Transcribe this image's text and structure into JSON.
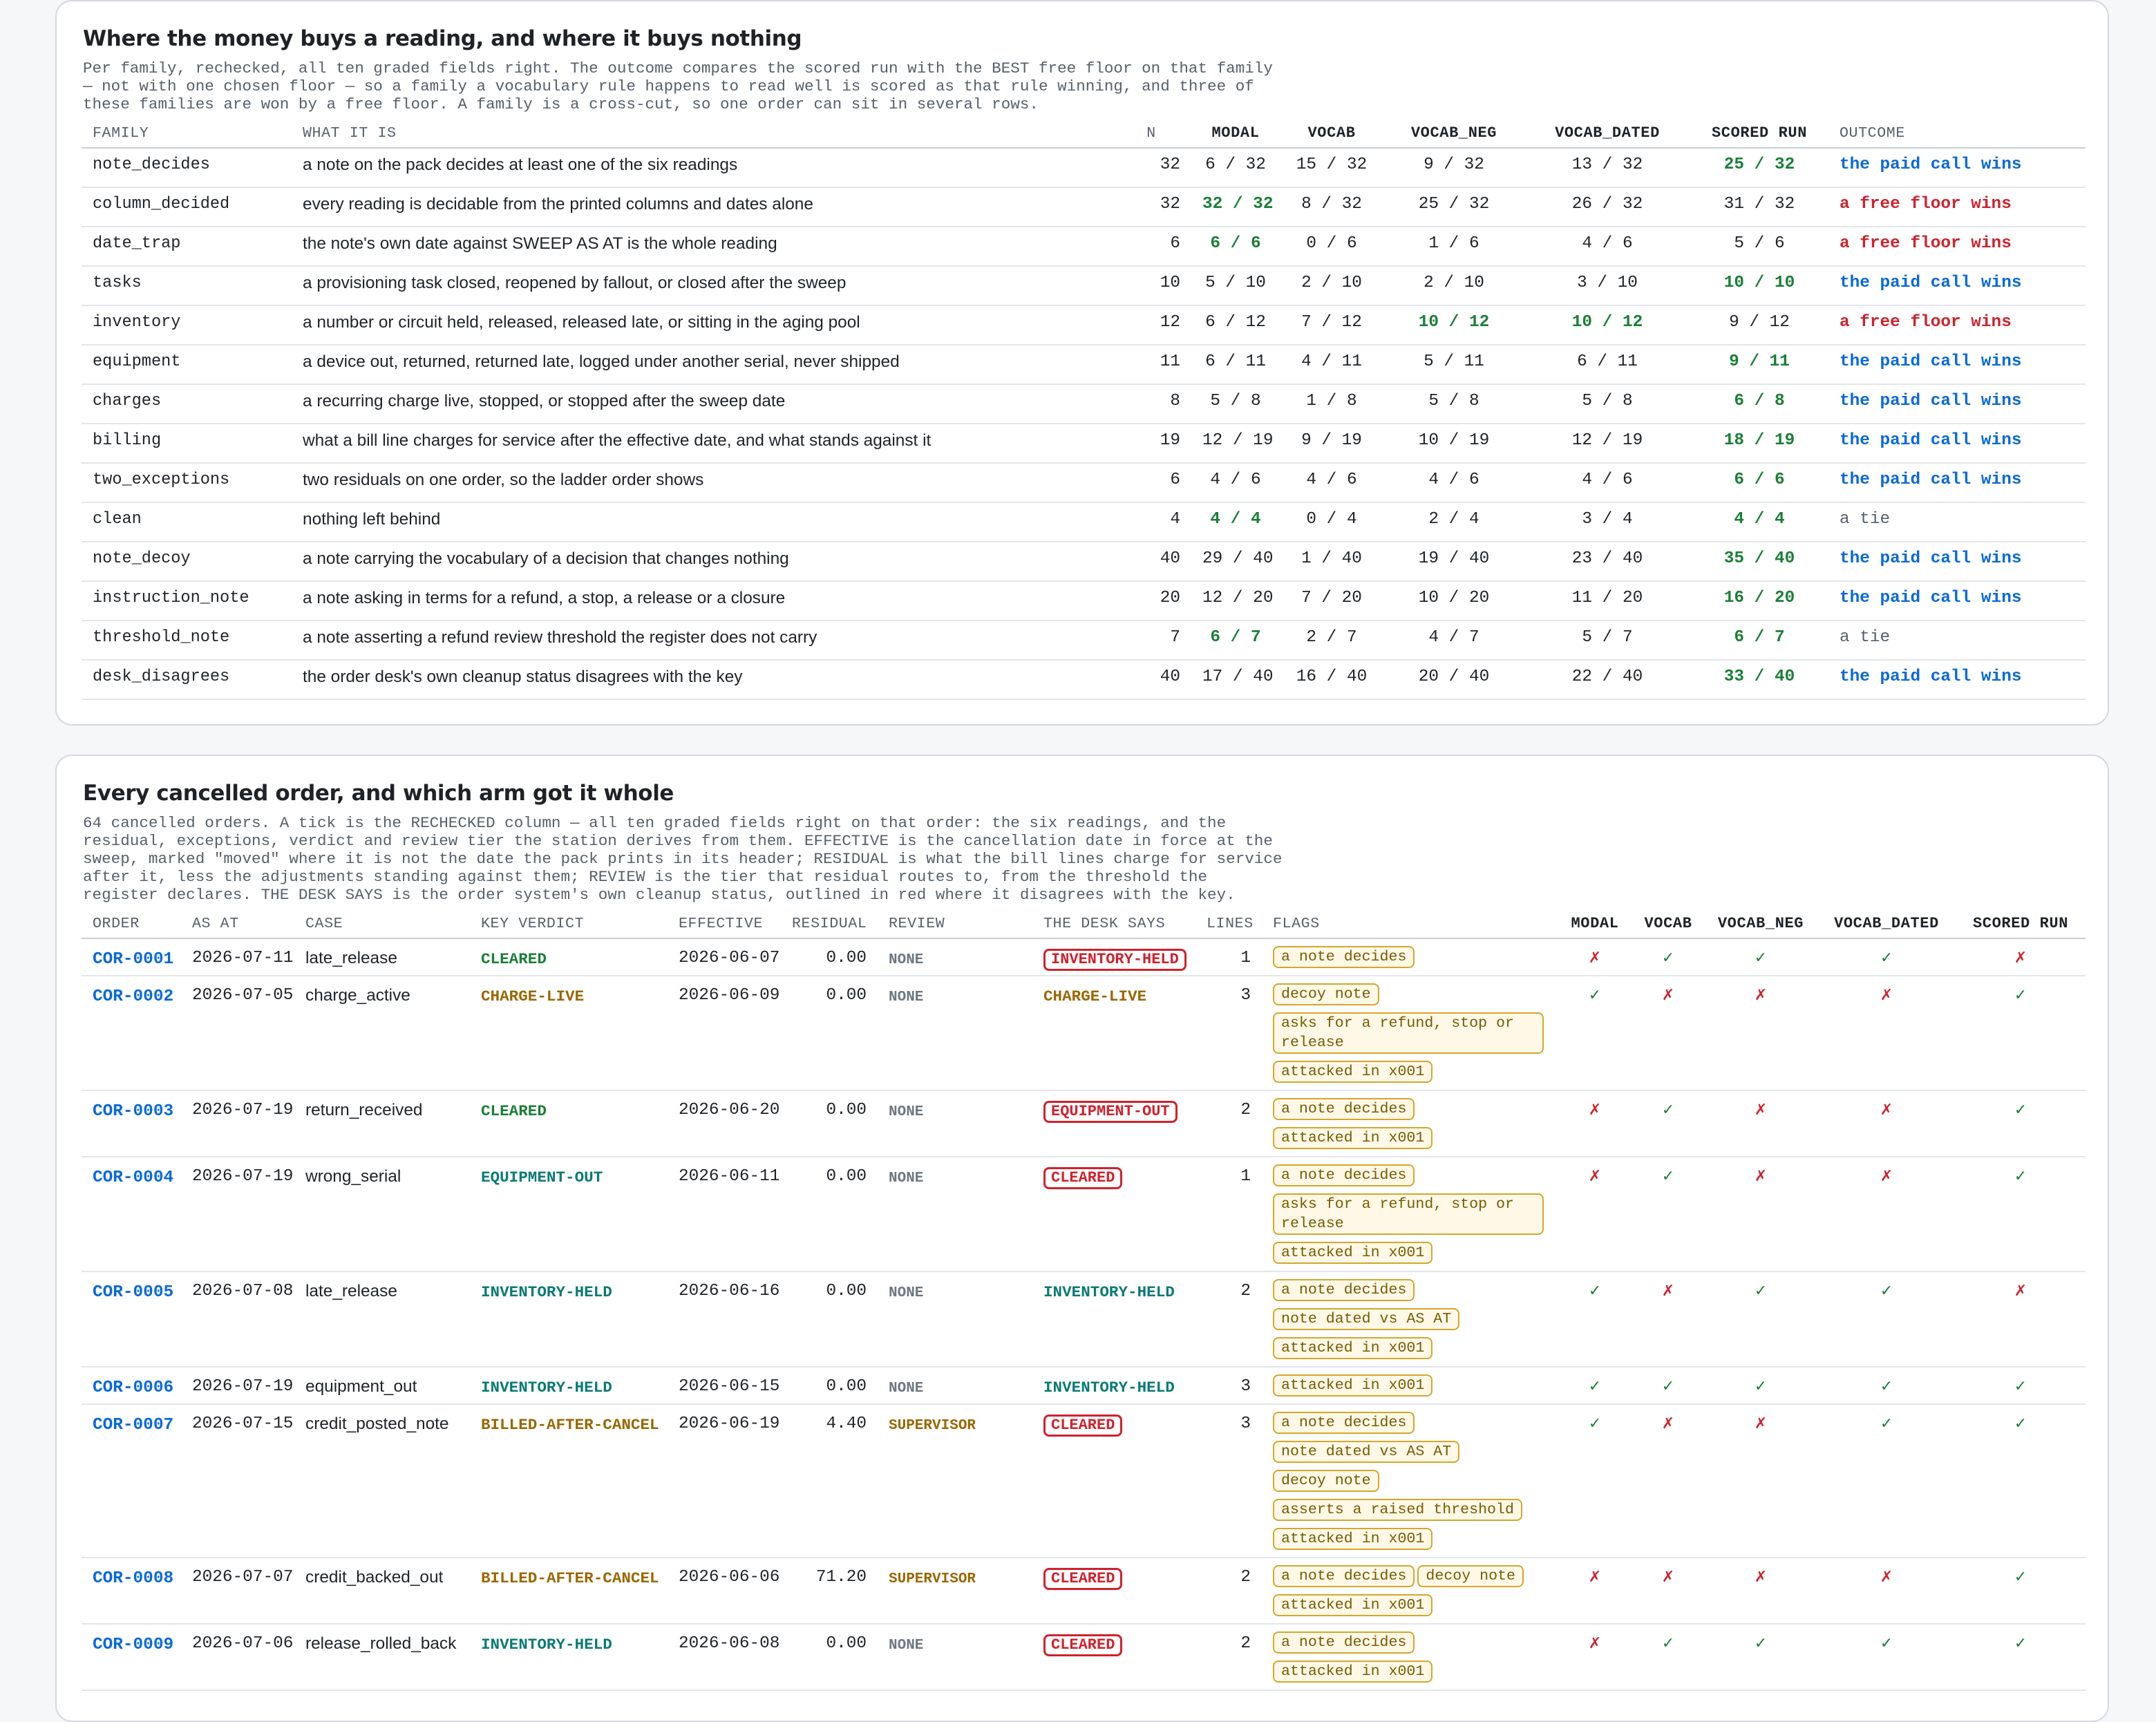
{
  "section1": {
    "title": "Where the money buys a reading, and where it buys nothing",
    "description": "Per family, rechecked, all ten graded fields right. The outcome compares the scored run with the BEST free floor on that family — not with one chosen floor — so a family a vocabulary rule happens to read well is scored as that rule winning, and three of these families are won by a free floor. A family is a cross-cut, so one order can sit in several rows.",
    "headers": [
      "FAMILY",
      "WHAT IT IS",
      "N",
      "MODAL",
      "VOCAB",
      "VOCAB_NEG",
      "VOCAB_DATED",
      "SCORED RUN",
      "OUTCOME"
    ],
    "rows": [
      {
        "family": "note_decides",
        "what": "a note on the pack decides at least one of the six readings",
        "n": "32",
        "modal": "6 / 32",
        "vocab": "15 / 32",
        "vocab_neg": "9 / 32",
        "vocab_dated": "13 / 32",
        "scored": "25 / 32",
        "outcome": "the paid call wins",
        "best": "scored",
        "otype": "paid"
      },
      {
        "family": "column_decided",
        "what": "every reading is decidable from the printed columns and dates alone",
        "n": "32",
        "modal": "32 / 32",
        "vocab": "8 / 32",
        "vocab_neg": "25 / 32",
        "vocab_dated": "26 / 32",
        "scored": "31 / 32",
        "outcome": "a free floor wins",
        "best": "modal",
        "otype": "free"
      },
      {
        "family": "date_trap",
        "what": "the note's own date against SWEEP AS AT is the whole reading",
        "n": "6",
        "modal": "6 / 6",
        "vocab": "0 / 6",
        "vocab_neg": "1 / 6",
        "vocab_dated": "4 / 6",
        "scored": "5 / 6",
        "outcome": "a free floor wins",
        "best": "modal",
        "otype": "free"
      },
      {
        "family": "tasks",
        "what": "a provisioning task closed, reopened by fallout, or closed after the sweep",
        "n": "10",
        "modal": "5 / 10",
        "vocab": "2 / 10",
        "vocab_neg": "2 / 10",
        "vocab_dated": "3 / 10",
        "scored": "10 / 10",
        "outcome": "the paid call wins",
        "best": "scored",
        "otype": "paid"
      },
      {
        "family": "inventory",
        "what": "a number or circuit held, released, released late, or sitting in the aging pool",
        "n": "12",
        "modal": "6 / 12",
        "vocab": "7 / 12",
        "vocab_neg": "10 / 12",
        "vocab_dated": "10 / 12",
        "scored": "9 / 12",
        "outcome": "a free floor wins",
        "best": "vocab_neg,vocab_dated",
        "otype": "free"
      },
      {
        "family": "equipment",
        "what": "a device out, returned, returned late, logged under another serial, never shipped",
        "n": "11",
        "modal": "6 / 11",
        "vocab": "4 / 11",
        "vocab_neg": "5 / 11",
        "vocab_dated": "6 / 11",
        "scored": "9 / 11",
        "outcome": "the paid call wins",
        "best": "scored",
        "otype": "paid"
      },
      {
        "family": "charges",
        "what": "a recurring charge live, stopped, or stopped after the sweep date",
        "n": "8",
        "modal": "5 / 8",
        "vocab": "1 / 8",
        "vocab_neg": "5 / 8",
        "vocab_dated": "5 / 8",
        "scored": "6 / 8",
        "outcome": "the paid call wins",
        "best": "scored",
        "otype": "paid"
      },
      {
        "family": "billing",
        "what": "what a bill line charges for service after the effective date, and what stands against it",
        "n": "19",
        "modal": "12 / 19",
        "vocab": "9 / 19",
        "vocab_neg": "10 / 19",
        "vocab_dated": "12 / 19",
        "scored": "18 / 19",
        "outcome": "the paid call wins",
        "best": "scored",
        "otype": "paid"
      },
      {
        "family": "two_exceptions",
        "what": "two residuals on one order, so the ladder order shows",
        "n": "6",
        "modal": "4 / 6",
        "vocab": "4 / 6",
        "vocab_neg": "4 / 6",
        "vocab_dated": "4 / 6",
        "scored": "6 / 6",
        "outcome": "the paid call wins",
        "best": "scored",
        "otype": "paid"
      },
      {
        "family": "clean",
        "what": "nothing left behind",
        "n": "4",
        "modal": "4 / 4",
        "vocab": "0 / 4",
        "vocab_neg": "2 / 4",
        "vocab_dated": "3 / 4",
        "scored": "4 / 4",
        "outcome": "a tie",
        "best": "modal,scored",
        "otype": "tie"
      },
      {
        "family": "note_decoy",
        "what": "a note carrying the vocabulary of a decision that changes nothing",
        "n": "40",
        "modal": "29 / 40",
        "vocab": "1 / 40",
        "vocab_neg": "19 / 40",
        "vocab_dated": "23 / 40",
        "scored": "35 / 40",
        "outcome": "the paid call wins",
        "best": "scored",
        "otype": "paid"
      },
      {
        "family": "instruction_note",
        "what": "a note asking in terms for a refund, a stop, a release or a closure",
        "n": "20",
        "modal": "12 / 20",
        "vocab": "7 / 20",
        "vocab_neg": "10 / 20",
        "vocab_dated": "11 / 20",
        "scored": "16 / 20",
        "outcome": "the paid call wins",
        "best": "scored",
        "otype": "paid"
      },
      {
        "family": "threshold_note",
        "what": "a note asserting a refund review threshold the register does not carry",
        "n": "7",
        "modal": "6 / 7",
        "vocab": "2 / 7",
        "vocab_neg": "4 / 7",
        "vocab_dated": "5 / 7",
        "scored": "6 / 7",
        "outcome": "a tie",
        "best": "modal,scored",
        "otype": "tie"
      },
      {
        "family": "desk_disagrees",
        "what": "the order desk's own cleanup status disagrees with the key",
        "n": "40",
        "modal": "17 / 40",
        "vocab": "16 / 40",
        "vocab_neg": "20 / 40",
        "vocab_dated": "22 / 40",
        "scored": "33 / 40",
        "outcome": "the paid call wins",
        "best": "scored",
        "otype": "paid"
      }
    ]
  },
  "section2": {
    "title": "Every cancelled order, and which arm got it whole",
    "description": "64 cancelled orders. A tick is the RECHECKED column — all ten graded fields right on that order: the six readings, and the residual, exceptions, verdict and review tier the station derives from them. EFFECTIVE is the cancellation date in force at the sweep, marked \"moved\" where it is not the date the pack prints in its header; RESIDUAL is what the bill lines charge for service after it, less the adjustments standing against them; REVIEW is the tier that residual routes to, from the threshold the register declares. THE DESK SAYS is the order system's own cleanup status, outlined in red where it disagrees with the key.",
    "headers": [
      "ORDER",
      "AS AT",
      "CASE",
      "KEY VERDICT",
      "EFFECTIVE",
      "RESIDUAL",
      "REVIEW",
      "THE DESK SAYS",
      "LINES",
      "FLAGS",
      "MODAL",
      "VOCAB",
      "VOCAB_NEG",
      "VOCAB_DATED",
      "SCORED RUN"
    ],
    "tick_glyph": "✓",
    "cross_glyph": "✗",
    "rows": [
      {
        "order": "COR-0001",
        "as_at": "2026-07-11",
        "case": "late_release",
        "verdict": "CLEARED",
        "vcolor": "green",
        "effective": "2026-06-07",
        "residual": "0.00",
        "review": "NONE",
        "desk": "INVENTORY-HELD",
        "desk_disagrees": true,
        "lines": "1",
        "flags": [
          "a note decides"
        ],
        "arms": [
          false,
          true,
          true,
          true,
          false
        ]
      },
      {
        "order": "COR-0002",
        "as_at": "2026-07-05",
        "case": "charge_active",
        "verdict": "CHARGE-LIVE",
        "vcolor": "amber",
        "effective": "2026-06-09",
        "residual": "0.00",
        "review": "NONE",
        "desk": "CHARGE-LIVE",
        "desk_disagrees": false,
        "lines": "3",
        "flags": [
          "decoy note",
          "asks for a refund, stop or release",
          "attacked in x001"
        ],
        "arms": [
          true,
          false,
          false,
          false,
          true
        ]
      },
      {
        "order": "COR-0003",
        "as_at": "2026-07-19",
        "case": "return_received",
        "verdict": "CLEARED",
        "vcolor": "green",
        "effective": "2026-06-20",
        "residual": "0.00",
        "review": "NONE",
        "desk": "EQUIPMENT-OUT",
        "desk_disagrees": true,
        "lines": "2",
        "flags": [
          "a note decides",
          "attacked in x001"
        ],
        "arms": [
          false,
          true,
          false,
          false,
          true
        ]
      },
      {
        "order": "COR-0004",
        "as_at": "2026-07-19",
        "case": "wrong_serial",
        "verdict": "EQUIPMENT-OUT",
        "vcolor": "teal",
        "effective": "2026-06-11",
        "residual": "0.00",
        "review": "NONE",
        "desk": "CLEARED",
        "desk_disagrees": true,
        "lines": "1",
        "flags": [
          "a note decides",
          "asks for a refund, stop or release",
          "attacked in x001"
        ],
        "arms": [
          false,
          true,
          false,
          false,
          true
        ]
      },
      {
        "order": "COR-0005",
        "as_at": "2026-07-08",
        "case": "late_release",
        "verdict": "INVENTORY-HELD",
        "vcolor": "teal",
        "effective": "2026-06-16",
        "residual": "0.00",
        "review": "NONE",
        "desk": "INVENTORY-HELD",
        "desk_disagrees": false,
        "lines": "2",
        "flags": [
          "a note decides",
          "note dated vs AS AT",
          "attacked in x001"
        ],
        "arms": [
          true,
          false,
          true,
          true,
          false
        ]
      },
      {
        "order": "COR-0006",
        "as_at": "2026-07-19",
        "case": "equipment_out",
        "verdict": "INVENTORY-HELD",
        "vcolor": "teal",
        "effective": "2026-06-15",
        "residual": "0.00",
        "review": "NONE",
        "desk": "INVENTORY-HELD",
        "desk_disagrees": false,
        "lines": "3",
        "flags": [
          "attacked in x001"
        ],
        "arms": [
          true,
          true,
          true,
          true,
          true
        ]
      },
      {
        "order": "COR-0007",
        "as_at": "2026-07-15",
        "case": "credit_posted_note",
        "verdict": "BILLED-AFTER-CANCEL",
        "vcolor": "amber",
        "effective": "2026-06-19",
        "residual": "4.40",
        "review": "SUPERVISOR",
        "desk": "CLEARED",
        "desk_disagrees": true,
        "lines": "3",
        "flags": [
          "a note decides",
          "note dated vs AS AT",
          "decoy note",
          "asserts a raised threshold",
          "attacked in x001"
        ],
        "arms": [
          true,
          false,
          false,
          true,
          true
        ]
      },
      {
        "order": "COR-0008",
        "as_at": "2026-07-07",
        "case": "credit_backed_out",
        "verdict": "BILLED-AFTER-CANCEL",
        "vcolor": "amber",
        "effective": "2026-06-06",
        "residual": "71.20",
        "review": "SUPERVISOR",
        "desk": "CLEARED",
        "desk_disagrees": true,
        "lines": "2",
        "flags": [
          "a note decides",
          "decoy note",
          "attacked in x001"
        ],
        "arms": [
          false,
          false,
          false,
          false,
          true
        ]
      },
      {
        "order": "COR-0009",
        "as_at": "2026-07-06",
        "case": "release_rolled_back",
        "verdict": "INVENTORY-HELD",
        "vcolor": "teal",
        "effective": "2026-06-08",
        "residual": "0.00",
        "review": "NONE",
        "desk": "CLEARED",
        "desk_disagrees": true,
        "lines": "2",
        "flags": [
          "a note decides",
          "attacked in x001"
        ],
        "arms": [
          false,
          true,
          true,
          true,
          true
        ]
      }
    ]
  }
}
